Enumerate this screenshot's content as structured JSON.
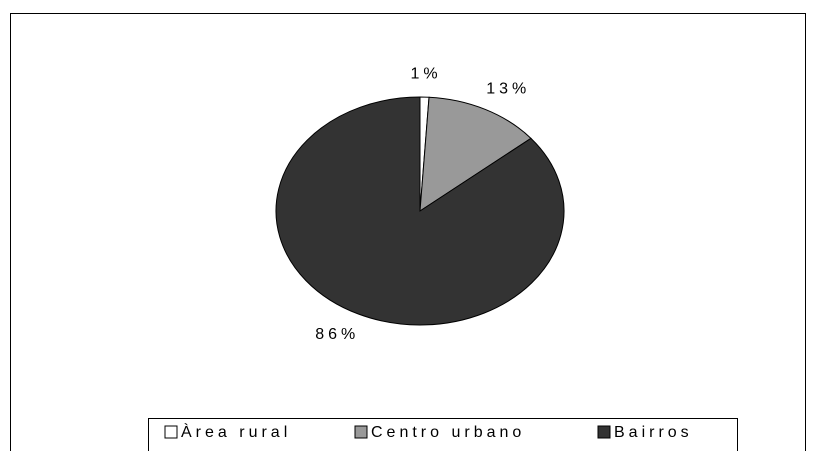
{
  "chart_data": {
    "type": "pie",
    "categories": [
      "Àrea rural",
      "Centro urbano",
      "Bairros"
    ],
    "values": [
      1,
      13,
      86
    ],
    "value_labels": [
      "1%",
      "13%",
      "86%"
    ],
    "colors": [
      "#ffffff",
      "#999999",
      "#333333"
    ],
    "legend": "bottom"
  }
}
